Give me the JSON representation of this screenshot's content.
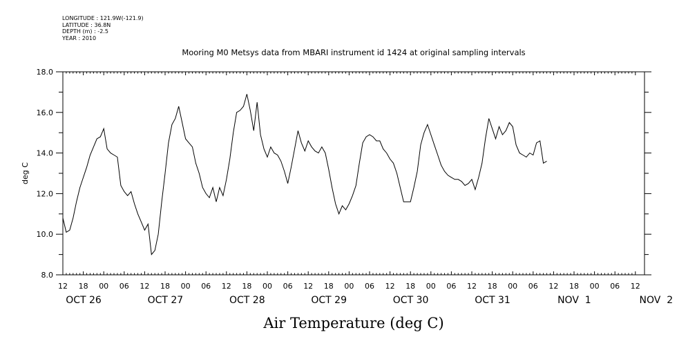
{
  "metadata": {
    "longitude": "LONGITUDE : 121.9W(-121.9)",
    "latitude": "LATITUDE : 36.8N",
    "depth": "DEPTH (m) : -2.5",
    "year": "YEAR : 2010"
  },
  "chart_data": {
    "type": "line",
    "title": "Mooring M0 Metsys data from MBARI instrument id 1424 at original sampling intervals",
    "xlabel": "Air Temperature (deg C)",
    "ylabel": "deg C",
    "ylim": [
      8.0,
      18.0
    ],
    "y_ticks": [
      "8.0",
      "10.0",
      "12.0",
      "14.0",
      "16.0",
      "18.0"
    ],
    "x_hour_labels": [
      "12",
      "18",
      "00",
      "06",
      "12",
      "18",
      "00",
      "06",
      "12",
      "18",
      "00",
      "06",
      "12",
      "18",
      "00",
      "06",
      "12",
      "18",
      "00",
      "06",
      "12",
      "18",
      "00",
      "06",
      "12",
      "18",
      "00",
      "06",
      "12"
    ],
    "x_date_labels": [
      {
        "label": "OCT 26",
        "hour": 0
      },
      {
        "label": "OCT 27",
        "hour": 24
      },
      {
        "label": "OCT 28",
        "hour": 48
      },
      {
        "label": "OCT 29",
        "hour": 72
      },
      {
        "label": "OCT 30",
        "hour": 96
      },
      {
        "label": "OCT 31",
        "hour": 120
      },
      {
        "label": "NOV  1",
        "hour": 144
      },
      {
        "label": "NOV  2",
        "hour": 168
      }
    ],
    "x_range_hours": [
      0,
      168
    ],
    "grid": false,
    "series": [
      {
        "points": [
          [
            0,
            10.8
          ],
          [
            1,
            10.1
          ],
          [
            2,
            10.2
          ],
          [
            3,
            10.8
          ],
          [
            4,
            11.6
          ],
          [
            5,
            12.3
          ],
          [
            6,
            12.8
          ],
          [
            7,
            13.3
          ],
          [
            8,
            13.9
          ],
          [
            9,
            14.3
          ],
          [
            10,
            14.7
          ],
          [
            11,
            14.8
          ],
          [
            12,
            15.2
          ],
          [
            13,
            14.2
          ],
          [
            14,
            14.0
          ],
          [
            15,
            13.9
          ],
          [
            16,
            13.8
          ],
          [
            17,
            12.4
          ],
          [
            18,
            12.1
          ],
          [
            19,
            11.9
          ],
          [
            20,
            12.1
          ],
          [
            21,
            11.5
          ],
          [
            22,
            11.0
          ],
          [
            23,
            10.6
          ],
          [
            24,
            10.2
          ],
          [
            25,
            10.5
          ],
          [
            26,
            9.0
          ],
          [
            27,
            9.2
          ],
          [
            28,
            10.0
          ],
          [
            29,
            11.6
          ],
          [
            30,
            13.0
          ],
          [
            31,
            14.5
          ],
          [
            32,
            15.4
          ],
          [
            33,
            15.7
          ],
          [
            34,
            16.3
          ],
          [
            35,
            15.5
          ],
          [
            36,
            14.7
          ],
          [
            37,
            14.5
          ],
          [
            38,
            14.3
          ],
          [
            39,
            13.5
          ],
          [
            40,
            13.0
          ],
          [
            41,
            12.3
          ],
          [
            42,
            12.0
          ],
          [
            43,
            11.8
          ],
          [
            44,
            12.3
          ],
          [
            45,
            11.6
          ],
          [
            46,
            12.3
          ],
          [
            47,
            11.9
          ],
          [
            48,
            12.7
          ],
          [
            49,
            13.7
          ],
          [
            50,
            15.0
          ],
          [
            51,
            16.0
          ],
          [
            52,
            16.1
          ],
          [
            53,
            16.3
          ],
          [
            54,
            16.9
          ],
          [
            55,
            16.1
          ],
          [
            56,
            15.1
          ],
          [
            57,
            16.5
          ],
          [
            58,
            14.9
          ],
          [
            59,
            14.2
          ],
          [
            60,
            13.8
          ],
          [
            61,
            14.3
          ],
          [
            62,
            14.0
          ],
          [
            63,
            13.9
          ],
          [
            64,
            13.6
          ],
          [
            65,
            13.1
          ],
          [
            66,
            12.5
          ],
          [
            67,
            13.3
          ],
          [
            68,
            14.2
          ],
          [
            69,
            15.1
          ],
          [
            70,
            14.5
          ],
          [
            71,
            14.1
          ],
          [
            72,
            14.6
          ],
          [
            73,
            14.3
          ],
          [
            74,
            14.1
          ],
          [
            75,
            14.0
          ],
          [
            76,
            14.3
          ],
          [
            77,
            14.0
          ],
          [
            78,
            13.2
          ],
          [
            79,
            12.3
          ],
          [
            80,
            11.5
          ],
          [
            81,
            11.0
          ],
          [
            82,
            11.4
          ],
          [
            83,
            11.2
          ],
          [
            84,
            11.5
          ],
          [
            85,
            11.9
          ],
          [
            86,
            12.4
          ],
          [
            87,
            13.5
          ],
          [
            88,
            14.5
          ],
          [
            89,
            14.8
          ],
          [
            90,
            14.9
          ],
          [
            91,
            14.8
          ],
          [
            92,
            14.6
          ],
          [
            93,
            14.6
          ],
          [
            94,
            14.2
          ],
          [
            95,
            14.0
          ],
          [
            96,
            13.7
          ],
          [
            97,
            13.5
          ],
          [
            98,
            13.0
          ],
          [
            99,
            12.3
          ],
          [
            100,
            11.6
          ],
          [
            101,
            11.6
          ],
          [
            102,
            11.6
          ],
          [
            103,
            12.3
          ],
          [
            104,
            13.1
          ],
          [
            105,
            14.4
          ],
          [
            106,
            15.0
          ],
          [
            107,
            15.4
          ],
          [
            108,
            14.9
          ],
          [
            109,
            14.4
          ],
          [
            110,
            13.9
          ],
          [
            111,
            13.4
          ],
          [
            112,
            13.1
          ],
          [
            113,
            12.9
          ],
          [
            114,
            12.8
          ],
          [
            115,
            12.7
          ],
          [
            116,
            12.7
          ],
          [
            117,
            12.6
          ],
          [
            118,
            12.4
          ],
          [
            119,
            12.5
          ],
          [
            120,
            12.7
          ],
          [
            121,
            12.2
          ],
          [
            122,
            12.8
          ],
          [
            123,
            13.5
          ],
          [
            124,
            14.7
          ],
          [
            125,
            15.7
          ],
          [
            126,
            15.2
          ],
          [
            127,
            14.7
          ],
          [
            128,
            15.3
          ],
          [
            129,
            14.9
          ],
          [
            130,
            15.1
          ],
          [
            131,
            15.5
          ],
          [
            132,
            15.3
          ],
          [
            133,
            14.4
          ],
          [
            134,
            14.0
          ],
          [
            135,
            13.9
          ],
          [
            136,
            13.8
          ],
          [
            137,
            14.0
          ],
          [
            138,
            13.9
          ],
          [
            139,
            14.5
          ],
          [
            140,
            14.6
          ],
          [
            141,
            13.5
          ],
          [
            142,
            13.6
          ]
        ]
      }
    ]
  }
}
